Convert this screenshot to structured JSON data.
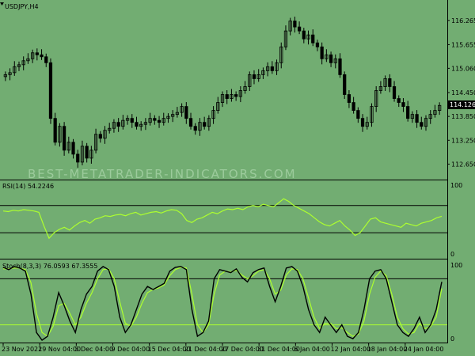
{
  "window": {
    "symbol_label": "USDJPY,H4",
    "current_price": "114.126"
  },
  "watermark": "BEST-METATRADER-INDICATORS.COM",
  "colors": {
    "background": "#72ad72",
    "candle": "#000000",
    "rsi_line": "#adff2f",
    "stoch_main": "#000000",
    "stoch_signal": "#adff2f",
    "level_line": "#000000",
    "stoch_low_level": "#adff2f"
  },
  "price_axis": {
    "ticks": [
      "116.265",
      "115.655",
      "115.060",
      "114.450",
      "113.850",
      "113.250",
      "112.650"
    ]
  },
  "rsi_panel": {
    "label": "RSI(14) 54.2246",
    "axis": {
      "top": "100",
      "bottom": "0"
    }
  },
  "stoch_panel": {
    "label": "Stoch(8,3,3) 76.0593 67.3555",
    "axis": {
      "top": "100",
      "bottom": "0"
    }
  },
  "time_axis": {
    "labels": [
      "23 Nov 2021",
      "29 Nov 04:00",
      "3 Dec 04:00",
      "9 Dec 04:00",
      "15 Dec 04:00",
      "21 Dec 04:00",
      "27 Dec 04:00",
      "31 Dec 04:00",
      "6 Jan 04:00",
      "12 Jan 04:00",
      "18 Jan 04:00",
      "24 Jan 04:00"
    ]
  },
  "chart_data": [
    {
      "type": "candlestick",
      "title": "USDJPY,H4",
      "ylim": [
        112.4,
        116.5
      ],
      "closes": [
        114.9,
        114.95,
        115.1,
        115.15,
        115.25,
        115.3,
        115.45,
        115.4,
        115.35,
        115.2,
        113.8,
        113.2,
        113.6,
        113.0,
        113.2,
        112.9,
        112.7,
        113.1,
        112.8,
        113.0,
        113.4,
        113.3,
        113.5,
        113.55,
        113.7,
        113.6,
        113.75,
        113.8,
        113.7,
        113.6,
        113.65,
        113.7,
        113.8,
        113.75,
        113.7,
        113.8,
        113.85,
        113.9,
        113.95,
        114.1,
        113.8,
        113.6,
        113.5,
        113.7,
        113.6,
        113.8,
        114.0,
        114.2,
        114.4,
        114.3,
        114.4,
        114.35,
        114.5,
        114.6,
        114.9,
        114.8,
        114.9,
        115.0,
        115.1,
        115.0,
        115.2,
        115.6,
        116.0,
        116.25,
        116.1,
        116.0,
        115.8,
        115.9,
        115.7,
        115.6,
        115.3,
        115.4,
        115.2,
        115.3,
        114.9,
        114.4,
        114.2,
        114.0,
        113.8,
        113.6,
        113.7,
        114.1,
        114.5,
        114.6,
        114.8,
        114.6,
        114.3,
        114.2,
        114.1,
        113.8,
        113.9,
        113.7,
        113.6,
        113.8,
        113.9,
        114.0,
        114.126
      ]
    },
    {
      "type": "line",
      "title": "RSI(14) 54.2246",
      "ylim": [
        0,
        100
      ],
      "levels": [
        70,
        30
      ],
      "series": [
        {
          "name": "RSI(14)",
          "values": [
            62,
            61,
            63,
            62,
            64,
            63,
            62,
            60,
            40,
            22,
            30,
            35,
            38,
            34,
            40,
            45,
            48,
            44,
            50,
            52,
            55,
            54,
            56,
            57,
            55,
            58,
            60,
            56,
            58,
            60,
            61,
            59,
            62,
            64,
            63,
            58,
            48,
            45,
            50,
            52,
            56,
            60,
            58,
            62,
            65,
            64,
            66,
            64,
            68,
            70,
            68,
            72,
            70,
            68,
            74,
            80,
            76,
            70,
            66,
            62,
            58,
            52,
            46,
            42,
            40,
            44,
            48,
            40,
            34,
            26,
            30,
            40,
            50,
            52,
            46,
            44,
            42,
            40,
            38,
            44,
            42,
            40,
            44,
            46,
            48,
            52,
            54.2246
          ]
        }
      ]
    },
    {
      "type": "line",
      "title": "Stoch(8,3,3) 76.0593 67.3555",
      "ylim": [
        0,
        100
      ],
      "levels": [
        80,
        20
      ],
      "series": [
        {
          "name": "Stoch main",
          "values": [
            95,
            92,
            96,
            94,
            90,
            60,
            10,
            0,
            5,
            30,
            62,
            45,
            25,
            10,
            40,
            60,
            70,
            90,
            96,
            92,
            70,
            30,
            10,
            20,
            40,
            60,
            70,
            66,
            70,
            74,
            90,
            95,
            96,
            92,
            40,
            5,
            10,
            25,
            80,
            92,
            90,
            88,
            93,
            82,
            76,
            88,
            92,
            94,
            70,
            50,
            70,
            94,
            96,
            90,
            70,
            40,
            20,
            10,
            30,
            20,
            10,
            20,
            5,
            2,
            10,
            40,
            80,
            90,
            92,
            80,
            50,
            20,
            10,
            5,
            15,
            30,
            10,
            20,
            40,
            76.0593
          ]
        },
        {
          "name": "Stoch signal",
          "values": [
            93,
            93,
            94,
            94,
            92,
            75,
            35,
            10,
            5,
            18,
            45,
            48,
            35,
            20,
            30,
            48,
            62,
            80,
            92,
            93,
            80,
            50,
            22,
            18,
            30,
            48,
            62,
            66,
            68,
            72,
            84,
            92,
            95,
            94,
            60,
            20,
            10,
            20,
            60,
            85,
            90,
            89,
            91,
            85,
            80,
            84,
            90,
            92,
            80,
            60,
            65,
            85,
            93,
            92,
            80,
            55,
            30,
            15,
            22,
            22,
            15,
            16,
            10,
            5,
            8,
            25,
            60,
            82,
            90,
            84,
            60,
            30,
            15,
            8,
            10,
            22,
            15,
            18,
            30,
            67.3555
          ]
        }
      ]
    }
  ]
}
